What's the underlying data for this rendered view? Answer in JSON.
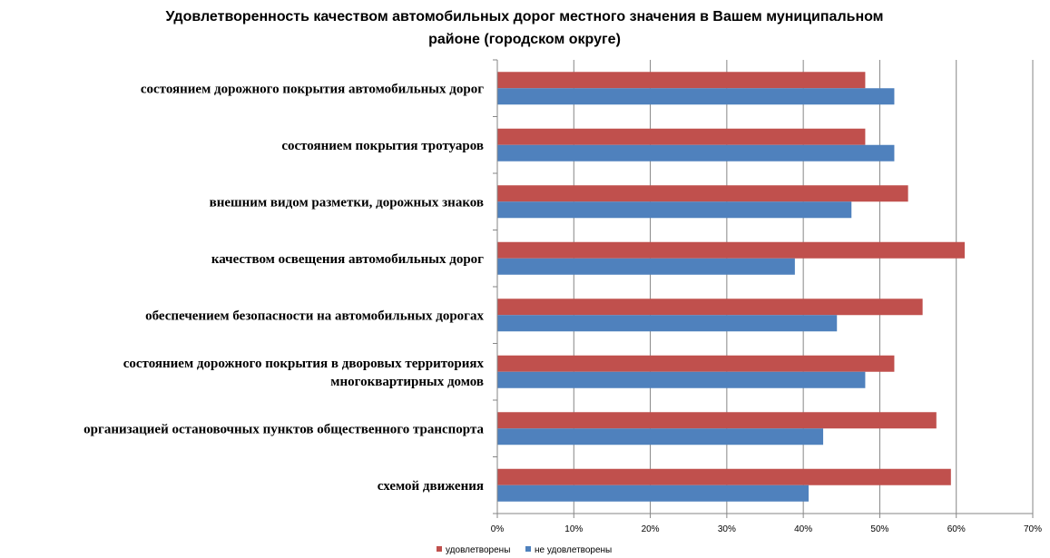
{
  "chart_data": {
    "type": "bar",
    "orientation": "horizontal",
    "title": "Удовлетворенность качеством автомобильных дорог местного значения в Вашем муниципальном районе (городском округе)",
    "title_lines": [
      "Удовлетворенность качеством автомобильных дорог местного значения в Вашем муниципальном",
      "районе (городском округе)"
    ],
    "categories": [
      [
        "состоянием дорожного покрытия автомобильных дорог"
      ],
      [
        "состоянием покрытия тротуаров"
      ],
      [
        "внешним видом разметки, дорожных знаков"
      ],
      [
        "качеством освещения автомобильных дорог"
      ],
      [
        "обеспечением безопасности на автомобильных дорогах"
      ],
      [
        "состоянием дорожного покрытия в дворовых территориях",
        "многоквартирных домов"
      ],
      [
        "организацией остановочных пунктов общественного транспорта"
      ],
      [
        "схемой движения"
      ]
    ],
    "series": [
      {
        "name": "удовлетворены",
        "color": "#C0504D",
        "values": [
          48.1,
          48.1,
          53.7,
          61.1,
          55.6,
          51.9,
          57.4,
          59.3
        ]
      },
      {
        "name": "не удовлетворены",
        "color": "#4F81BD",
        "values": [
          51.9,
          51.9,
          46.3,
          38.9,
          44.4,
          48.1,
          42.6,
          40.7
        ]
      }
    ],
    "x_ticks": [
      "0%",
      "10%",
      "20%",
      "30%",
      "40%",
      "50%",
      "60%",
      "70%"
    ],
    "xlim": [
      0,
      70
    ],
    "x_unit": "%",
    "grid": true,
    "legend_position": "bottom"
  }
}
